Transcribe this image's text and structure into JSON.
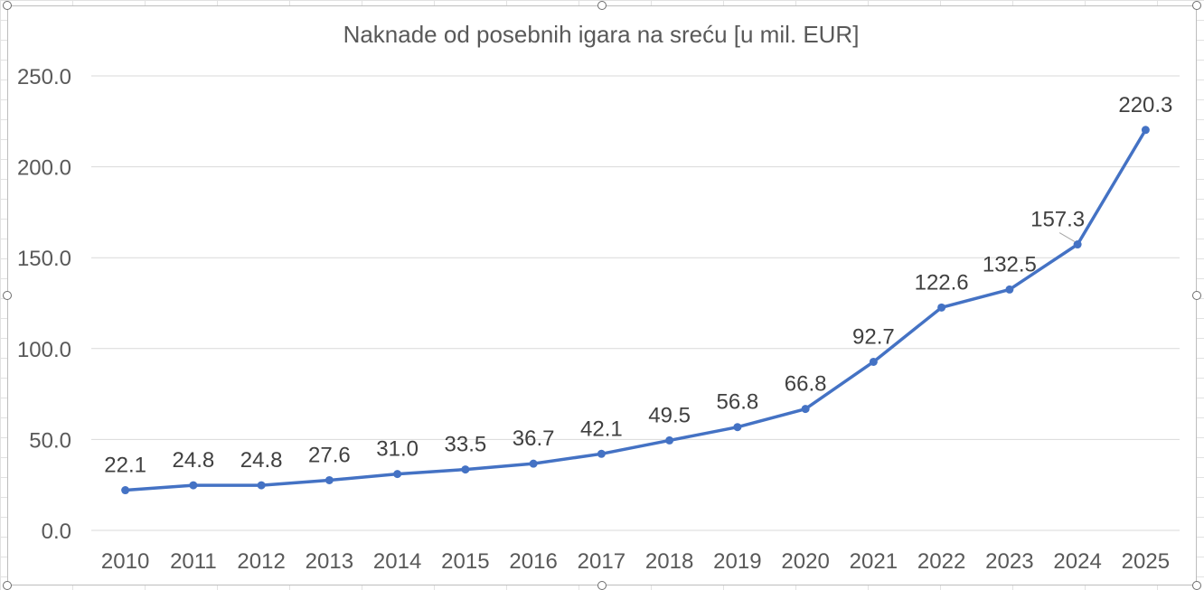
{
  "chart_data": {
    "type": "line",
    "title": "Naknade od posebnih igara na sreću [u mil. EUR]",
    "xlabel": "",
    "ylabel": "",
    "categories": [
      "2010",
      "2011",
      "2012",
      "2013",
      "2014",
      "2015",
      "2016",
      "2017",
      "2018",
      "2019",
      "2020",
      "2021",
      "2022",
      "2023",
      "2024",
      "2025"
    ],
    "series": [
      {
        "values": [
          22.1,
          24.8,
          24.8,
          27.6,
          31.0,
          33.5,
          36.7,
          42.1,
          49.5,
          56.8,
          66.8,
          92.7,
          122.6,
          132.5,
          157.3,
          220.3
        ]
      }
    ],
    "data_labels": [
      "22.1",
      "24.8",
      "24.8",
      "27.6",
      "31.0",
      "33.5",
      "36.7",
      "42.1",
      "49.5",
      "56.8",
      "66.8",
      "92.7",
      "122.6",
      "132.5",
      "157.3",
      "220.3"
    ],
    "y_ticks": [
      "0.0",
      "50.0",
      "100.0",
      "150.0",
      "200.0",
      "250.0"
    ],
    "ylim": [
      0,
      250
    ],
    "grid": true,
    "legend": "none",
    "colors": {
      "line": "#4472c4",
      "grid": "#d9d9d9",
      "text": "#595959",
      "label": "#404040"
    }
  }
}
